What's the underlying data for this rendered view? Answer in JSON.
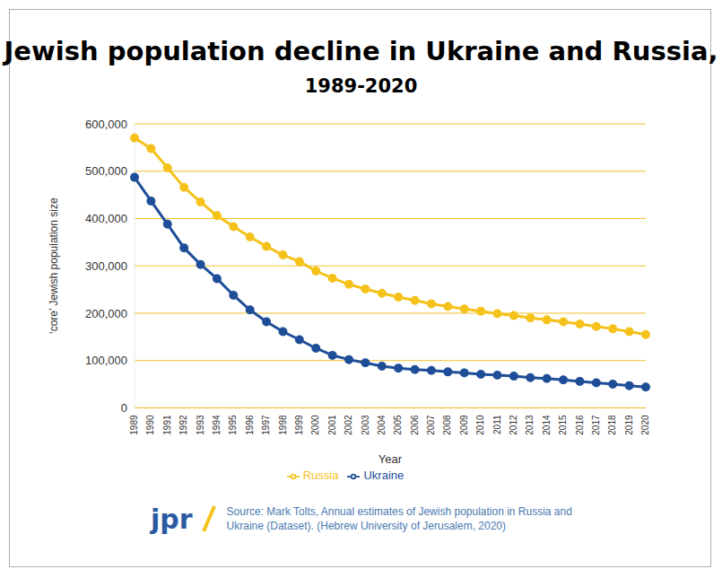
{
  "chart_data": {
    "type": "line",
    "title": "Jewish population decline in Ukraine and Russia,",
    "subtitle": "1989-2020",
    "x_label": "Year",
    "y_label": "‘core’ Jewish population size",
    "categories": [
      "1989",
      "1990",
      "1991",
      "1992",
      "1993",
      "1994",
      "1995",
      "1996",
      "1997",
      "1998",
      "1999",
      "2000",
      "2001",
      "2002",
      "2003",
      "2004",
      "2005",
      "2006",
      "2007",
      "2008",
      "2009",
      "2010",
      "2011",
      "2012",
      "2013",
      "2014",
      "2015",
      "2016",
      "2017",
      "2018",
      "2019",
      "2020"
    ],
    "series": [
      {
        "name": "Ukraine",
        "color": "#1f4e99",
        "marker": "circle",
        "values": [
          487000,
          437000,
          388000,
          338000,
          303000,
          273000,
          238000,
          207000,
          182000,
          161000,
          144000,
          126000,
          111000,
          102000,
          95000,
          88000,
          84000,
          81000,
          79000,
          76000,
          74000,
          71000,
          69000,
          67000,
          64000,
          62000,
          59000,
          56000,
          53000,
          50000,
          47000,
          44000
        ]
      },
      {
        "name": "Russia",
        "color": "#f5c21b",
        "marker": "circle",
        "values": [
          570000,
          548000,
          507000,
          466000,
          435000,
          406000,
          383000,
          361000,
          341000,
          323000,
          309000,
          289000,
          274000,
          261000,
          251000,
          242000,
          234000,
          227000,
          220000,
          214000,
          209000,
          204000,
          199000,
          195000,
          190000,
          186000,
          182000,
          177000,
          172000,
          167000,
          161000,
          155000
        ]
      }
    ],
    "ylim": [
      0,
      600000
    ],
    "yticks": [
      0,
      {
        "value": 100000,
        "label": "100,000"
      },
      {
        "value": 200000,
        "label": "200,000"
      },
      {
        "value": 300000,
        "label": "300,000"
      },
      {
        "value": 400000,
        "label": "400,000"
      },
      {
        "value": 500000,
        "label": "500,000"
      },
      {
        "value": 600000,
        "label": "600,000"
      }
    ],
    "grid": true,
    "legend": "bottom",
    "logo": "jpr",
    "source": "Source: Mark Tolts, Annual estimates of Jewish population in Russia and Ukraine (Dataset). (Hebrew University of Jerusalem, 2020)"
  }
}
